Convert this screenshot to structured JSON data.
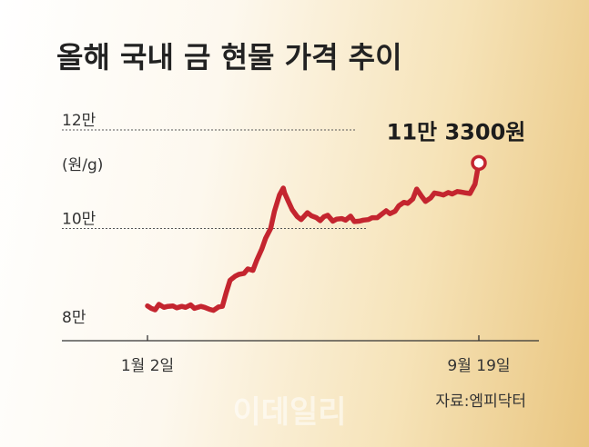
{
  "chart_data": {
    "type": "line",
    "title": "올해 국내 금 현물 가격 추이",
    "unit_label": "(원/g)",
    "y_ticks": [
      {
        "value": 120000,
        "label": "12만"
      },
      {
        "value": 100000,
        "label": "10만"
      },
      {
        "value": 80000,
        "label": "8만"
      }
    ],
    "x_tick_labels": [
      "1월 2일",
      "9월 19일"
    ],
    "x_range": [
      "2024-01-02",
      "2024-09-19"
    ],
    "ylim": [
      80000,
      120000
    ],
    "grid": "dotted horizontal lines at 12만 and 10만",
    "line_color": "#c4252f",
    "series": [
      {
        "x": [
          "2024-01-02",
          "2024-01-05",
          "2024-01-08",
          "2024-01-11",
          "2024-01-15",
          "2024-01-18",
          "2024-01-22",
          "2024-01-25",
          "2024-01-29",
          "2024-02-01",
          "2024-02-05",
          "2024-02-08",
          "2024-02-13",
          "2024-02-16",
          "2024-02-20",
          "2024-02-23",
          "2024-02-27",
          "2024-03-01",
          "2024-03-04",
          "2024-03-07",
          "2024-03-11",
          "2024-03-14",
          "2024-03-18",
          "2024-03-21",
          "2024-03-25",
          "2024-03-28",
          "2024-04-01",
          "2024-04-04",
          "2024-04-08",
          "2024-04-11",
          "2024-04-15",
          "2024-04-18",
          "2024-04-19",
          "2024-04-22",
          "2024-04-25",
          "2024-04-29",
          "2024-05-02",
          "2024-05-07",
          "2024-05-10",
          "2024-05-14",
          "2024-05-17",
          "2024-05-20",
          "2024-05-23",
          "2024-05-27",
          "2024-05-30",
          "2024-06-03",
          "2024-06-06",
          "2024-06-10",
          "2024-06-13",
          "2024-06-17",
          "2024-06-20",
          "2024-06-24",
          "2024-06-27",
          "2024-07-01",
          "2024-07-04",
          "2024-07-08",
          "2024-07-11",
          "2024-07-15",
          "2024-07-18",
          "2024-07-22",
          "2024-07-25",
          "2024-07-29",
          "2024-08-01",
          "2024-08-05",
          "2024-08-08",
          "2024-08-12",
          "2024-08-15",
          "2024-08-19",
          "2024-08-22",
          "2024-08-26",
          "2024-08-29",
          "2024-09-02",
          "2024-09-05",
          "2024-09-09",
          "2024-09-12",
          "2024-09-16",
          "2024-09-19"
        ],
        "y": [
          84300,
          83800,
          83500,
          84600,
          84000,
          84200,
          84300,
          83900,
          84200,
          84000,
          84500,
          83800,
          84200,
          84000,
          83600,
          83400,
          84100,
          84200,
          87000,
          89500,
          90300,
          90700,
          90900,
          91800,
          91500,
          93500,
          95800,
          98000,
          100000,
          103500,
          106800,
          108200,
          107200,
          105500,
          103800,
          102400,
          101800,
          103200,
          102600,
          102200,
          101600,
          102400,
          102700,
          101500,
          101900,
          102000,
          101700,
          102500,
          101400,
          101500,
          101700,
          101800,
          102200,
          102200,
          102800,
          103600,
          103000,
          103500,
          104600,
          105300,
          105100,
          106000,
          108000,
          106500,
          105500,
          106200,
          107200,
          107000,
          106800,
          107300,
          107000,
          107500,
          107400,
          107200,
          107100,
          109000,
          113300
        ]
      }
    ],
    "annotation": {
      "text": "11만 3300원",
      "x": "2024-09-19",
      "y": 113300
    },
    "source": "자료:엠피닥터",
    "watermark": "이데일리"
  }
}
